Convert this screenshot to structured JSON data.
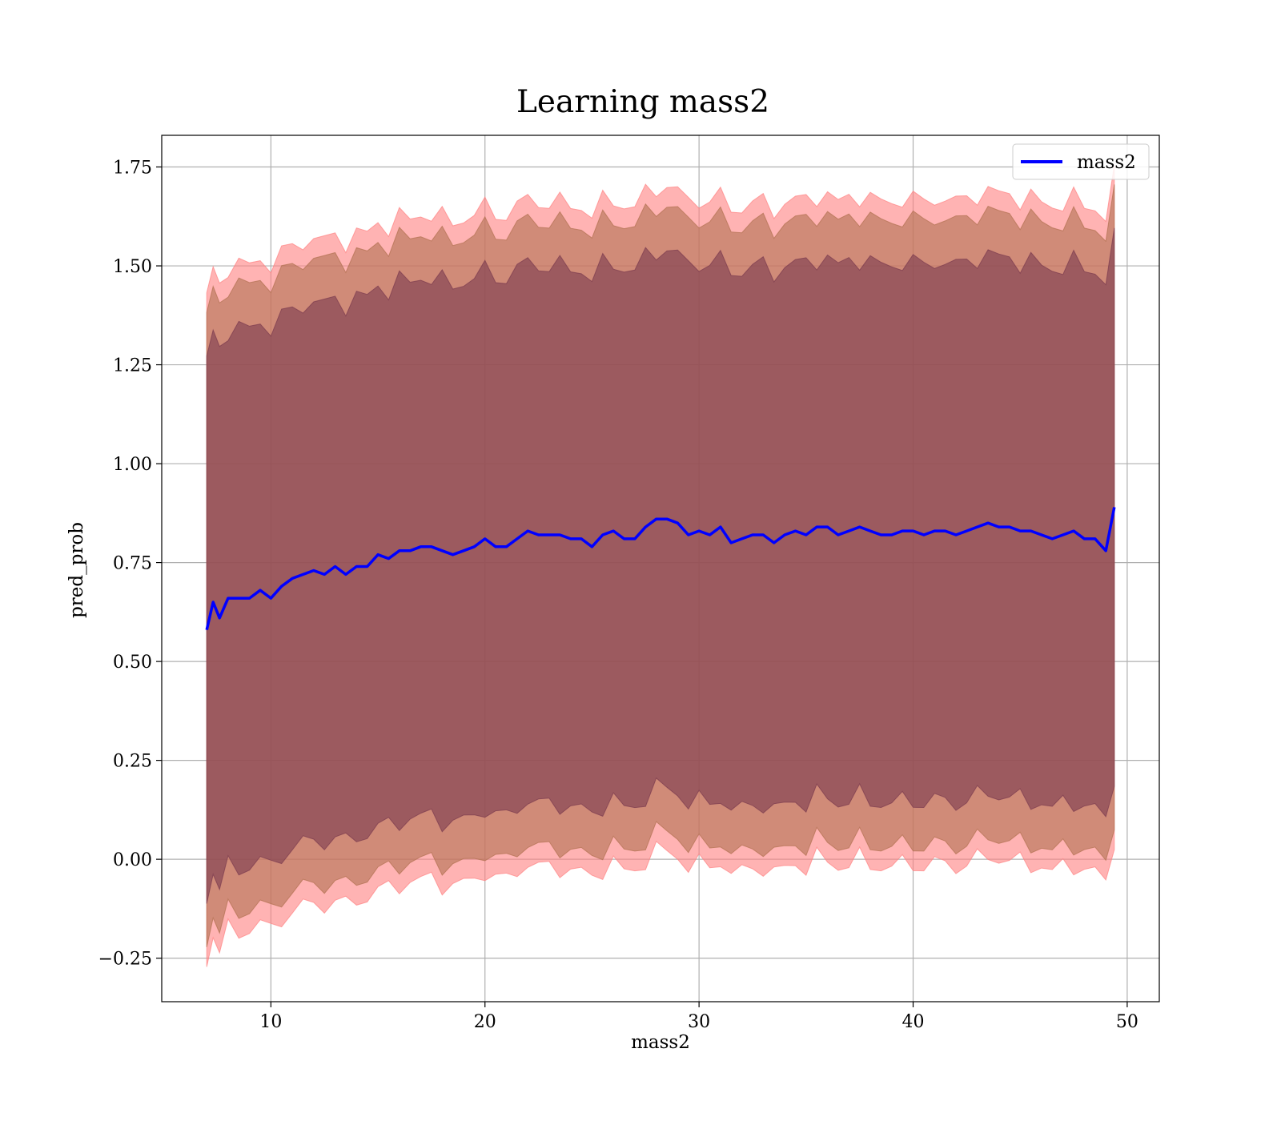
{
  "chart_data": {
    "type": "area",
    "title": "Learning mass2",
    "xlabel": "mass2",
    "ylabel": "pred_prob",
    "xlim": [
      4.9,
      51.5
    ],
    "ylim": [
      -0.36,
      1.83
    ],
    "xticks": [
      10,
      20,
      30,
      40,
      50
    ],
    "yticks": [
      -0.25,
      0.0,
      0.25,
      0.5,
      0.75,
      1.0,
      1.25,
      1.5,
      1.75
    ],
    "ytick_labels": [
      "−0.25",
      "0.00",
      "0.25",
      "0.50",
      "0.75",
      "1.00",
      "1.25",
      "1.50",
      "1.75"
    ],
    "grid": true,
    "legend": {
      "position": "top-right",
      "entries": [
        "mass2"
      ]
    },
    "colors": {
      "line": "#0000ff",
      "band_outer": "#ff8080",
      "band_middle": "#b07050",
      "band_inner": "#7a3a4e"
    },
    "band_widths": [
      0.68,
      0.79,
      0.84
    ],
    "series": [
      {
        "name": "mass2",
        "x": [
          7.0,
          7.3,
          7.6,
          8.0,
          8.5,
          9.0,
          9.5,
          10.0,
          10.5,
          11.0,
          11.5,
          12.0,
          12.5,
          13.0,
          13.5,
          14.0,
          14.5,
          15.0,
          15.5,
          16.0,
          16.5,
          17.0,
          17.5,
          18.0,
          18.5,
          19.0,
          19.5,
          20.0,
          20.5,
          21.0,
          21.5,
          22.0,
          22.5,
          23.0,
          23.5,
          24.0,
          24.5,
          25.0,
          25.5,
          26.0,
          26.5,
          27.0,
          27.5,
          28.0,
          28.5,
          29.0,
          29.5,
          30.0,
          30.5,
          31.0,
          31.5,
          32.0,
          32.5,
          33.0,
          33.5,
          34.0,
          34.5,
          35.0,
          35.5,
          36.0,
          36.5,
          37.0,
          37.5,
          38.0,
          38.5,
          39.0,
          39.5,
          40.0,
          40.5,
          41.0,
          41.5,
          42.0,
          42.5,
          43.0,
          43.5,
          44.0,
          44.5,
          45.0,
          45.5,
          46.0,
          46.5,
          47.0,
          47.5,
          48.0,
          48.5,
          49.0,
          49.4
        ],
        "y": [
          0.58,
          0.65,
          0.61,
          0.66,
          0.66,
          0.66,
          0.68,
          0.66,
          0.69,
          0.71,
          0.72,
          0.73,
          0.72,
          0.74,
          0.72,
          0.74,
          0.74,
          0.77,
          0.76,
          0.78,
          0.78,
          0.79,
          0.79,
          0.78,
          0.77,
          0.78,
          0.79,
          0.81,
          0.79,
          0.79,
          0.81,
          0.83,
          0.82,
          0.82,
          0.82,
          0.81,
          0.81,
          0.79,
          0.82,
          0.83,
          0.81,
          0.81,
          0.84,
          0.86,
          0.86,
          0.85,
          0.82,
          0.83,
          0.82,
          0.84,
          0.8,
          0.81,
          0.82,
          0.82,
          0.8,
          0.82,
          0.83,
          0.82,
          0.84,
          0.84,
          0.82,
          0.83,
          0.84,
          0.83,
          0.82,
          0.82,
          0.83,
          0.83,
          0.82,
          0.83,
          0.83,
          0.82,
          0.83,
          0.84,
          0.85,
          0.84,
          0.84,
          0.83,
          0.83,
          0.82,
          0.81,
          0.82,
          0.83,
          0.81,
          0.81,
          0.78,
          0.89
        ]
      }
    ]
  }
}
